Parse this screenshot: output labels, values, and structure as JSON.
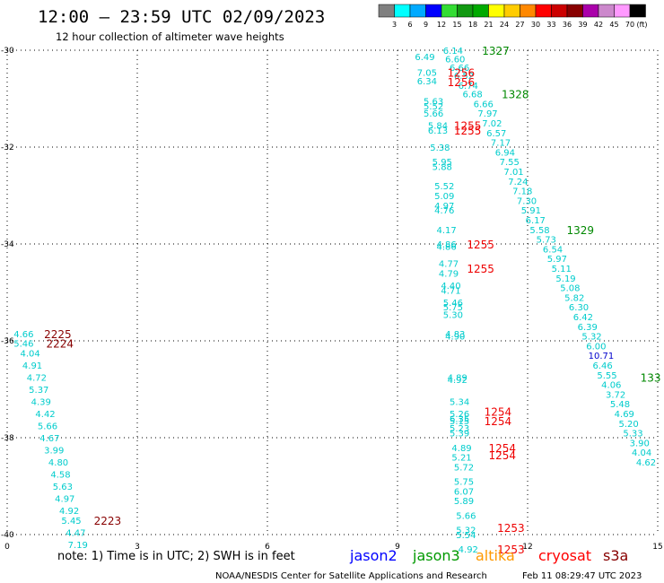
{
  "title": "12:00 – 23:59 UTC 02/09/2023",
  "subtitle": "12 hour collection of altimeter wave heights",
  "colorbar": {
    "colors": [
      "#808080",
      "#00ffff",
      "#00aaff",
      "#0000ff",
      "#33dd33",
      "#119911",
      "#00aa00",
      "#ffff00",
      "#ffcc00",
      "#ff8800",
      "#ff0000",
      "#cc0000",
      "#880000",
      "#aa00aa",
      "#cc88cc",
      "#ff99ff",
      "#000000"
    ],
    "labels": [
      "3",
      "6",
      "9",
      "12",
      "15",
      "18",
      "21",
      "24",
      "27",
      "30",
      "33",
      "36",
      "39",
      "42",
      "45",
      "70"
    ],
    "unit": "(ft)"
  },
  "note": "note: 1) Time is in UTC; 2) SWH is in feet",
  "legend": [
    {
      "label": "jason2",
      "color": "#0000ff"
    },
    {
      "label": "jason3",
      "color": "#009900"
    },
    {
      "label": "altika",
      "color": "#ff9900"
    },
    {
      "label": "cryosat",
      "color": "#ff0000"
    },
    {
      "label": "s3a",
      "color": "#880000"
    }
  ],
  "credit_left": "NOAA/NESDIS Center for Satellite Applications and Research",
  "credit_right": "Feb 11 08:29:47 UTC 2023",
  "chart_data": {
    "type": "scatter",
    "title": "12:00 – 23:59 UTC 02/09/2023",
    "xlabel": "",
    "ylabel": "",
    "xlim": [
      0,
      15
    ],
    "ylim": [
      -40,
      -30
    ],
    "x_ticks": [
      "0",
      "3",
      "6",
      "9",
      "12",
      "15"
    ],
    "y_ticks": [
      "-30",
      "-32",
      "-34",
      "-36",
      "-38",
      "-40"
    ],
    "grid": true,
    "points": [
      {
        "x": 10.05,
        "y": -30.0,
        "swh": "6.14",
        "color": "#00cccc"
      },
      {
        "x": 10.1,
        "y": -30.18,
        "swh": "6.60",
        "color": "#00cccc"
      },
      {
        "x": 9.4,
        "y": -30.13,
        "swh": "6.49",
        "color": "#00cccc"
      },
      {
        "x": 10.2,
        "y": -30.35,
        "swh": "6.66",
        "color": "#00cccc"
      },
      {
        "x": 10.3,
        "y": -30.52,
        "swh": "6.52",
        "color": "#00cccc"
      },
      {
        "x": 9.45,
        "y": -30.45,
        "swh": "7.05",
        "color": "#00cccc"
      },
      {
        "x": 9.45,
        "y": -30.63,
        "swh": "6.34",
        "color": "#00cccc"
      },
      {
        "x": 10.4,
        "y": -30.72,
        "swh": "6.74",
        "color": "#00cccc"
      },
      {
        "x": 10.5,
        "y": -30.9,
        "swh": "6.68",
        "color": "#00cccc"
      },
      {
        "x": 9.6,
        "y": -31.05,
        "swh": "5.63",
        "color": "#00cccc"
      },
      {
        "x": 9.6,
        "y": -31.15,
        "swh": "5.52",
        "color": "#00cccc"
      },
      {
        "x": 9.6,
        "y": -31.3,
        "swh": "5.66",
        "color": "#00cccc"
      },
      {
        "x": 10.75,
        "y": -31.1,
        "swh": "6.66",
        "color": "#00cccc"
      },
      {
        "x": 10.85,
        "y": -31.3,
        "swh": "7.97",
        "color": "#00cccc"
      },
      {
        "x": 10.95,
        "y": -31.5,
        "swh": "7.02",
        "color": "#00cccc"
      },
      {
        "x": 9.7,
        "y": -31.55,
        "swh": "5.84",
        "color": "#00cccc"
      },
      {
        "x": 9.7,
        "y": -31.65,
        "swh": "6.13",
        "color": "#00cccc"
      },
      {
        "x": 11.05,
        "y": -31.7,
        "swh": "6.57",
        "color": "#00cccc"
      },
      {
        "x": 11.15,
        "y": -31.9,
        "swh": "7.17",
        "color": "#00cccc"
      },
      {
        "x": 9.75,
        "y": -32.0,
        "swh": "5.38",
        "color": "#00cccc"
      },
      {
        "x": 11.25,
        "y": -32.1,
        "swh": "6.94",
        "color": "#00cccc"
      },
      {
        "x": 11.35,
        "y": -32.3,
        "swh": "7.55",
        "color": "#00cccc"
      },
      {
        "x": 9.8,
        "y": -32.3,
        "swh": "5.95",
        "color": "#00cccc"
      },
      {
        "x": 9.8,
        "y": -32.4,
        "swh": "5.88",
        "color": "#00cccc"
      },
      {
        "x": 11.45,
        "y": -32.5,
        "swh": "7.01",
        "color": "#00cccc"
      },
      {
        "x": 11.55,
        "y": -32.7,
        "swh": "7.24",
        "color": "#00cccc"
      },
      {
        "x": 9.85,
        "y": -32.8,
        "swh": "5.52",
        "color": "#00cccc"
      },
      {
        "x": 11.65,
        "y": -32.9,
        "swh": "7.18",
        "color": "#00cccc"
      },
      {
        "x": 9.85,
        "y": -33.0,
        "swh": "5.09",
        "color": "#00cccc"
      },
      {
        "x": 11.75,
        "y": -33.1,
        "swh": "7.30",
        "color": "#00cccc"
      },
      {
        "x": 9.85,
        "y": -33.2,
        "swh": "4.97",
        "color": "#00cccc"
      },
      {
        "x": 9.85,
        "y": -33.3,
        "swh": "4.76",
        "color": "#00cccc"
      },
      {
        "x": 11.85,
        "y": -33.3,
        "swh": "5.91",
        "color": "#00cccc"
      },
      {
        "x": 11.95,
        "y": -33.5,
        "swh": "6.17",
        "color": "#00cccc"
      },
      {
        "x": 9.9,
        "y": -33.7,
        "swh": "4.17",
        "color": "#00cccc"
      },
      {
        "x": 12.05,
        "y": -33.7,
        "swh": "5.58",
        "color": "#00cccc"
      },
      {
        "x": 12.2,
        "y": -33.9,
        "swh": "5.73",
        "color": "#00cccc"
      },
      {
        "x": 9.9,
        "y": -34.0,
        "swh": "4.86",
        "color": "#00cccc"
      },
      {
        "x": 9.9,
        "y": -34.05,
        "swh": "4.86",
        "color": "#00cccc"
      },
      {
        "x": 12.35,
        "y": -34.1,
        "swh": "6.54",
        "color": "#00cccc"
      },
      {
        "x": 12.45,
        "y": -34.3,
        "swh": "5.97",
        "color": "#00cccc"
      },
      {
        "x": 9.95,
        "y": -34.4,
        "swh": "4.77",
        "color": "#00cccc"
      },
      {
        "x": 12.55,
        "y": -34.5,
        "swh": "5.11",
        "color": "#00cccc"
      },
      {
        "x": 9.95,
        "y": -34.6,
        "swh": "4.79",
        "color": "#00cccc"
      },
      {
        "x": 12.65,
        "y": -34.7,
        "swh": "5.19",
        "color": "#00cccc"
      },
      {
        "x": 10.0,
        "y": -34.85,
        "swh": "4.40",
        "color": "#00cccc"
      },
      {
        "x": 10.0,
        "y": -34.95,
        "swh": "4.71",
        "color": "#00cccc"
      },
      {
        "x": 12.75,
        "y": -34.9,
        "swh": "5.08",
        "color": "#00cccc"
      },
      {
        "x": 12.85,
        "y": -35.1,
        "swh": "5.82",
        "color": "#00cccc"
      },
      {
        "x": 10.05,
        "y": -35.2,
        "swh": "5.46",
        "color": "#00cccc"
      },
      {
        "x": 12.95,
        "y": -35.3,
        "swh": "6.30",
        "color": "#00cccc"
      },
      {
        "x": 10.05,
        "y": -35.3,
        "swh": "5.75",
        "color": "#00cccc"
      },
      {
        "x": 10.05,
        "y": -35.45,
        "swh": "5.30",
        "color": "#00cccc"
      },
      {
        "x": 13.05,
        "y": -35.5,
        "swh": "6.42",
        "color": "#00cccc"
      },
      {
        "x": 13.15,
        "y": -35.7,
        "swh": "6.39",
        "color": "#00cccc"
      },
      {
        "x": 13.25,
        "y": -35.9,
        "swh": "5.32",
        "color": "#00cccc"
      },
      {
        "x": 10.1,
        "y": -35.85,
        "swh": "4.83",
        "color": "#00cccc"
      },
      {
        "x": 10.1,
        "y": -35.9,
        "swh": "4.90",
        "color": "#00cccc"
      },
      {
        "x": 13.35,
        "y": -36.1,
        "swh": "6.00",
        "color": "#00cccc"
      },
      {
        "x": 13.4,
        "y": -36.3,
        "swh": "10.71",
        "color": "#0000cc"
      },
      {
        "x": 13.5,
        "y": -36.5,
        "swh": "6.46",
        "color": "#00cccc"
      },
      {
        "x": 10.15,
        "y": -36.75,
        "swh": "4.89",
        "color": "#00cccc"
      },
      {
        "x": 10.15,
        "y": -36.8,
        "swh": "4.92",
        "color": "#00cccc"
      },
      {
        "x": 13.6,
        "y": -36.7,
        "swh": "5.55",
        "color": "#00cccc"
      },
      {
        "x": 13.7,
        "y": -36.9,
        "swh": "4.06",
        "color": "#00cccc"
      },
      {
        "x": 13.8,
        "y": -37.1,
        "swh": "3.72",
        "color": "#00cccc"
      },
      {
        "x": 10.2,
        "y": -37.25,
        "swh": "5.34",
        "color": "#00cccc"
      },
      {
        "x": 13.9,
        "y": -37.3,
        "swh": "5.48",
        "color": "#00cccc"
      },
      {
        "x": 10.2,
        "y": -37.5,
        "swh": "5.26",
        "color": "#00cccc"
      },
      {
        "x": 14.0,
        "y": -37.5,
        "swh": "4.69",
        "color": "#00cccc"
      },
      {
        "x": 10.2,
        "y": -37.6,
        "swh": "6.35",
        "color": "#00cccc"
      },
      {
        "x": 10.2,
        "y": -37.65,
        "swh": "5.15",
        "color": "#00cccc"
      },
      {
        "x": 14.1,
        "y": -37.7,
        "swh": "5.20",
        "color": "#00cccc"
      },
      {
        "x": 10.2,
        "y": -37.8,
        "swh": "5.23",
        "color": "#00cccc"
      },
      {
        "x": 10.2,
        "y": -37.9,
        "swh": "5.39",
        "color": "#00cccc"
      },
      {
        "x": 14.2,
        "y": -37.9,
        "swh": "5.33",
        "color": "#00cccc"
      },
      {
        "x": 14.35,
        "y": -38.1,
        "swh": "3.90",
        "color": "#00cccc"
      },
      {
        "x": 10.25,
        "y": -38.2,
        "swh": "4.89",
        "color": "#00cccc"
      },
      {
        "x": 14.4,
        "y": -38.3,
        "swh": "4.04",
        "color": "#00cccc"
      },
      {
        "x": 10.25,
        "y": -38.4,
        "swh": "5.21",
        "color": "#00cccc"
      },
      {
        "x": 14.5,
        "y": -38.5,
        "swh": "4.62",
        "color": "#00cccc"
      },
      {
        "x": 10.3,
        "y": -38.6,
        "swh": "5.72",
        "color": "#00cccc"
      },
      {
        "x": 10.3,
        "y": -38.9,
        "swh": "5.75",
        "color": "#00cccc"
      },
      {
        "x": 10.3,
        "y": -39.1,
        "swh": "6.07",
        "color": "#00cccc"
      },
      {
        "x": 10.3,
        "y": -39.3,
        "swh": "5.89",
        "color": "#00cccc"
      },
      {
        "x": 10.35,
        "y": -39.6,
        "swh": "5.66",
        "color": "#00cccc"
      },
      {
        "x": 10.35,
        "y": -39.9,
        "swh": "5.32",
        "color": "#00cccc"
      },
      {
        "x": 10.35,
        "y": -40.0,
        "swh": "5.54",
        "color": "#00cccc"
      },
      {
        "x": 10.4,
        "y": -40.3,
        "swh": "4.92",
        "color": "#00cccc"
      },
      {
        "x": 0.15,
        "y": -35.85,
        "swh": "4.66",
        "color": "#00cccc"
      },
      {
        "x": 0.15,
        "y": -36.05,
        "swh": "5.46",
        "color": "#00cccc"
      },
      {
        "x": 0.3,
        "y": -36.25,
        "swh": "4.04",
        "color": "#00cccc"
      },
      {
        "x": 0.35,
        "y": -36.5,
        "swh": "4.91",
        "color": "#00cccc"
      },
      {
        "x": 0.45,
        "y": -36.75,
        "swh": "4.72",
        "color": "#00cccc"
      },
      {
        "x": 0.5,
        "y": -37.0,
        "swh": "5.37",
        "color": "#00cccc"
      },
      {
        "x": 0.55,
        "y": -37.25,
        "swh": "4.39",
        "color": "#00cccc"
      },
      {
        "x": 0.65,
        "y": -37.5,
        "swh": "4.42",
        "color": "#00cccc"
      },
      {
        "x": 0.7,
        "y": -37.75,
        "swh": "5.66",
        "color": "#00cccc"
      },
      {
        "x": 0.75,
        "y": -38.0,
        "swh": "4.67",
        "color": "#00cccc"
      },
      {
        "x": 0.85,
        "y": -38.25,
        "swh": "3.99",
        "color": "#00cccc"
      },
      {
        "x": 0.95,
        "y": -38.5,
        "swh": "4.80",
        "color": "#00cccc"
      },
      {
        "x": 1.0,
        "y": -38.75,
        "swh": "4.58",
        "color": "#00cccc"
      },
      {
        "x": 1.05,
        "y": -39.0,
        "swh": "5.63",
        "color": "#00cccc"
      },
      {
        "x": 1.1,
        "y": -39.25,
        "swh": "4.97",
        "color": "#00cccc"
      },
      {
        "x": 1.2,
        "y": -39.5,
        "swh": "4.92",
        "color": "#00cccc"
      },
      {
        "x": 1.25,
        "y": -39.7,
        "swh": "5.45",
        "color": "#00cccc"
      },
      {
        "x": 1.35,
        "y": -39.95,
        "swh": "4.47",
        "color": "#00cccc"
      },
      {
        "x": 1.4,
        "y": -40.2,
        "swh": "7.19",
        "color": "#00cccc"
      }
    ],
    "pass_labels": [
      {
        "x": 10.95,
        "y": -30.0,
        "text": "1327",
        "color": "#008800"
      },
      {
        "x": 10.15,
        "y": -30.45,
        "text": "1256",
        "color": "#ee0000"
      },
      {
        "x": 10.15,
        "y": -30.65,
        "text": "1256",
        "color": "#ee0000"
      },
      {
        "x": 11.4,
        "y": -30.9,
        "text": "1328",
        "color": "#008800"
      },
      {
        "x": 10.3,
        "y": -31.55,
        "text": "1255",
        "color": "#ee0000"
      },
      {
        "x": 10.3,
        "y": -31.65,
        "text": "1255",
        "color": "#ee0000"
      },
      {
        "x": 12.9,
        "y": -33.7,
        "text": "1329",
        "color": "#008800"
      },
      {
        "x": 10.6,
        "y": -34.0,
        "text": "1255",
        "color": "#ee0000"
      },
      {
        "x": 10.6,
        "y": -34.5,
        "text": "1255",
        "color": "#ee0000"
      },
      {
        "x": 14.6,
        "y": -36.75,
        "text": "133",
        "color": "#008800"
      },
      {
        "x": 11.0,
        "y": -37.45,
        "text": "1254",
        "color": "#ee0000"
      },
      {
        "x": 11.0,
        "y": -37.65,
        "text": "1254",
        "color": "#ee0000"
      },
      {
        "x": 11.1,
        "y": -38.2,
        "text": "1254",
        "color": "#ee0000"
      },
      {
        "x": 11.1,
        "y": -38.35,
        "text": "1254",
        "color": "#ee0000"
      },
      {
        "x": 11.3,
        "y": -39.85,
        "text": "1253",
        "color": "#ee0000"
      },
      {
        "x": 11.3,
        "y": -40.3,
        "text": "1253",
        "color": "#ee0000"
      },
      {
        "x": 0.85,
        "y": -35.85,
        "text": "2225",
        "color": "#880000"
      },
      {
        "x": 0.9,
        "y": -36.05,
        "text": "2224",
        "color": "#880000"
      },
      {
        "x": 2.0,
        "y": -39.7,
        "text": "2223",
        "color": "#880000"
      }
    ]
  }
}
